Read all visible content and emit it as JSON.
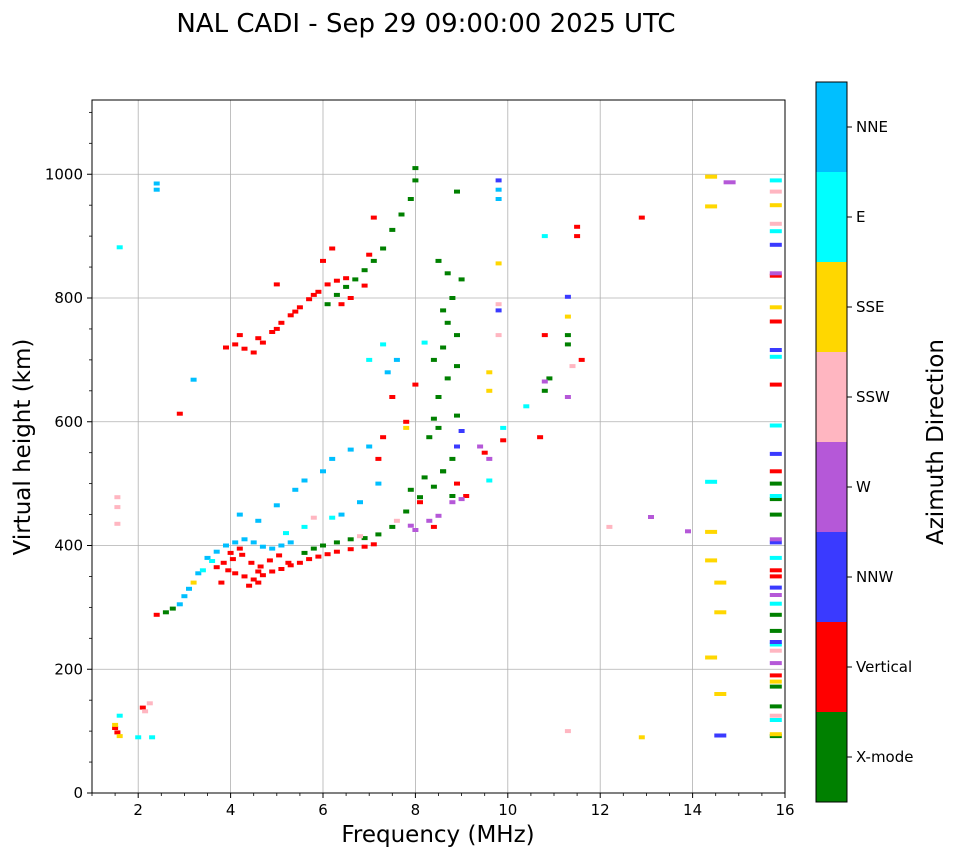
{
  "chart_data": {
    "type": "scatter",
    "title": "NAL CADI - Sep 29 09:00:00 2025 UTC",
    "xlabel": "Frequency (MHz)",
    "ylabel": "Virtual height (km)",
    "xlim": [
      1,
      16
    ],
    "ylim": [
      0,
      1120
    ],
    "xticks": [
      2,
      4,
      6,
      8,
      10,
      12,
      14,
      16
    ],
    "yticks": [
      0,
      200,
      400,
      600,
      800,
      1000
    ],
    "grid": true,
    "colorbar": {
      "label": "Azimuth Direction",
      "placement": "right",
      "categories": [
        {
          "name": "X-mode",
          "color": "#008000"
        },
        {
          "name": "Vertical",
          "color": "#ff0000"
        },
        {
          "name": "NNW",
          "color": "#3a3aff"
        },
        {
          "name": "W",
          "color": "#b558d8"
        },
        {
          "name": "SSW",
          "color": "#ffb6c1"
        },
        {
          "name": "SSE",
          "color": "#ffd700"
        },
        {
          "name": "E",
          "color": "#00ffff"
        },
        {
          "name": "NNE",
          "color": "#00bfff"
        }
      ]
    },
    "series": [
      {
        "name": "Vertical",
        "points": [
          [
            3.95,
            360
          ],
          [
            4.1,
            355
          ],
          [
            4.3,
            350
          ],
          [
            4.5,
            345
          ],
          [
            4.7,
            352
          ],
          [
            4.9,
            358
          ],
          [
            5.1,
            362
          ],
          [
            5.3,
            368
          ],
          [
            5.5,
            372
          ],
          [
            5.7,
            378
          ],
          [
            5.9,
            382
          ],
          [
            6.1,
            386
          ],
          [
            6.3,
            390
          ],
          [
            6.6,
            394
          ],
          [
            6.9,
            398
          ],
          [
            7.1,
            402
          ],
          [
            3.7,
            365
          ],
          [
            3.85,
            372
          ],
          [
            4.05,
            378
          ],
          [
            4.25,
            385
          ],
          [
            4.45,
            372
          ],
          [
            4.65,
            366
          ],
          [
            4.85,
            376
          ],
          [
            5.05,
            384
          ],
          [
            5.25,
            372
          ],
          [
            4.6,
            340
          ],
          [
            4.4,
            335
          ],
          [
            3.8,
            340
          ],
          [
            4.0,
            388
          ],
          [
            4.2,
            395
          ],
          [
            4.6,
            358
          ],
          [
            3.9,
            720
          ],
          [
            4.1,
            725
          ],
          [
            4.3,
            718
          ],
          [
            4.5,
            712
          ],
          [
            4.7,
            728
          ],
          [
            4.9,
            745
          ],
          [
            5.1,
            760
          ],
          [
            5.3,
            772
          ],
          [
            5.5,
            785
          ],
          [
            5.7,
            798
          ],
          [
            5.9,
            810
          ],
          [
            6.1,
            822
          ],
          [
            6.3,
            828
          ],
          [
            6.5,
            832
          ],
          [
            4.6,
            735
          ],
          [
            5.0,
            750
          ],
          [
            5.4,
            778
          ],
          [
            5.8,
            805
          ],
          [
            4.2,
            740
          ],
          [
            7.2,
            540
          ],
          [
            7.3,
            575
          ],
          [
            7.5,
            640
          ],
          [
            7.8,
            600
          ],
          [
            8.0,
            660
          ],
          [
            8.1,
            470
          ],
          [
            8.4,
            430
          ],
          [
            8.9,
            500
          ],
          [
            9.1,
            480
          ],
          [
            9.5,
            550
          ],
          [
            9.9,
            570
          ],
          [
            10.7,
            575
          ],
          [
            10.8,
            740
          ],
          [
            11.6,
            700
          ],
          [
            11.5,
            900
          ],
          [
            11.5,
            915
          ],
          [
            12.9,
            930
          ],
          [
            15.8,
            660
          ],
          [
            15.8,
            520
          ],
          [
            15.8,
            360
          ],
          [
            15.8,
            350
          ],
          [
            15.8,
            190
          ],
          [
            15.8,
            836
          ],
          [
            15.8,
            762
          ],
          [
            1.5,
            105
          ],
          [
            1.55,
            98
          ],
          [
            2.1,
            138
          ],
          [
            2.4,
            288
          ],
          [
            2.9,
            613
          ],
          [
            6.4,
            790
          ],
          [
            6.6,
            800
          ],
          [
            6.9,
            820
          ],
          [
            7.0,
            870
          ],
          [
            7.1,
            930
          ],
          [
            5.0,
            822
          ],
          [
            6.0,
            860
          ],
          [
            6.2,
            880
          ]
        ]
      },
      {
        "name": "X-mode",
        "points": [
          [
            6.0,
            400
          ],
          [
            6.3,
            405
          ],
          [
            6.6,
            410
          ],
          [
            6.9,
            412
          ],
          [
            7.2,
            418
          ],
          [
            7.5,
            430
          ],
          [
            7.8,
            455
          ],
          [
            8.1,
            478
          ],
          [
            8.4,
            495
          ],
          [
            8.6,
            520
          ],
          [
            8.8,
            540
          ],
          [
            5.8,
            395
          ],
          [
            5.6,
            388
          ],
          [
            6.1,
            790
          ],
          [
            6.3,
            805
          ],
          [
            6.5,
            818
          ],
          [
            6.7,
            830
          ],
          [
            6.9,
            845
          ],
          [
            7.1,
            860
          ],
          [
            7.3,
            880
          ],
          [
            7.5,
            910
          ],
          [
            7.7,
            935
          ],
          [
            7.9,
            960
          ],
          [
            8.0,
            990
          ],
          [
            8.0,
            1010
          ],
          [
            8.5,
            860
          ],
          [
            8.7,
            840
          ],
          [
            8.8,
            800
          ],
          [
            8.6,
            780
          ],
          [
            8.7,
            760
          ],
          [
            8.9,
            740
          ],
          [
            8.6,
            720
          ],
          [
            8.4,
            700
          ],
          [
            8.9,
            690
          ],
          [
            8.7,
            670
          ],
          [
            8.5,
            640
          ],
          [
            8.4,
            605
          ],
          [
            8.5,
            590
          ],
          [
            8.9,
            610
          ],
          [
            8.3,
            575
          ],
          [
            8.6,
            520
          ],
          [
            8.8,
            480
          ],
          [
            8.2,
            510
          ],
          [
            7.9,
            490
          ],
          [
            8.9,
            972
          ],
          [
            9.0,
            830
          ],
          [
            2.6,
            292
          ],
          [
            2.75,
            298
          ],
          [
            11.3,
            740
          ],
          [
            11.3,
            725
          ],
          [
            10.9,
            670
          ],
          [
            10.8,
            650
          ],
          [
            15.8,
            500
          ],
          [
            15.8,
            475
          ],
          [
            15.8,
            450
          ],
          [
            15.8,
            262
          ],
          [
            15.8,
            172
          ],
          [
            15.8,
            140
          ],
          [
            15.8,
            92
          ],
          [
            15.8,
            288
          ]
        ]
      },
      {
        "name": "NNE",
        "points": [
          [
            3.5,
            380
          ],
          [
            3.7,
            390
          ],
          [
            3.9,
            400
          ],
          [
            4.1,
            405
          ],
          [
            4.3,
            410
          ],
          [
            4.5,
            405
          ],
          [
            4.7,
            398
          ],
          [
            4.9,
            395
          ],
          [
            5.1,
            400
          ],
          [
            5.3,
            405
          ],
          [
            3.3,
            355
          ],
          [
            3.1,
            330
          ],
          [
            3.0,
            318
          ],
          [
            2.9,
            305
          ],
          [
            4.2,
            450
          ],
          [
            4.6,
            440
          ],
          [
            5.0,
            465
          ],
          [
            5.4,
            490
          ],
          [
            5.6,
            505
          ],
          [
            6.0,
            520
          ],
          [
            6.2,
            540
          ],
          [
            6.6,
            555
          ],
          [
            7.0,
            560
          ],
          [
            7.2,
            500
          ],
          [
            6.8,
            470
          ],
          [
            6.4,
            450
          ],
          [
            2.4,
            985
          ],
          [
            2.4,
            975
          ],
          [
            9.8,
            975
          ],
          [
            9.8,
            960
          ],
          [
            7.4,
            680
          ],
          [
            7.6,
            700
          ],
          [
            3.2,
            668
          ]
        ]
      },
      {
        "name": "E",
        "points": [
          [
            3.4,
            360
          ],
          [
            3.6,
            375
          ],
          [
            5.2,
            420
          ],
          [
            5.6,
            430
          ],
          [
            6.2,
            445
          ],
          [
            7.0,
            700
          ],
          [
            7.3,
            725
          ],
          [
            8.2,
            728
          ],
          [
            9.9,
            590
          ],
          [
            10.4,
            625
          ],
          [
            10.8,
            900
          ],
          [
            9.6,
            505
          ],
          [
            15.8,
            594
          ],
          [
            15.8,
            480
          ],
          [
            15.8,
            380
          ],
          [
            15.8,
            306
          ],
          [
            15.8,
            240
          ],
          [
            15.8,
            118
          ],
          [
            15.8,
            908
          ],
          [
            15.8,
            990
          ],
          [
            15.8,
            705
          ],
          [
            14.4,
            503
          ],
          [
            1.6,
            882
          ],
          [
            2.3,
            90
          ],
          [
            2.0,
            90
          ],
          [
            1.6,
            125
          ]
        ]
      },
      {
        "name": "NNW",
        "points": [
          [
            9.8,
            990
          ],
          [
            11.3,
            802
          ],
          [
            9.8,
            780
          ],
          [
            9.0,
            585
          ],
          [
            8.9,
            560
          ],
          [
            15.8,
            405
          ],
          [
            15.8,
            548
          ],
          [
            15.8,
            332
          ],
          [
            15.8,
            244
          ],
          [
            15.8,
            886
          ],
          [
            15.8,
            716
          ],
          [
            14.6,
            93
          ]
        ]
      },
      {
        "name": "W",
        "points": [
          [
            8.8,
            470
          ],
          [
            9.0,
            475
          ],
          [
            8.5,
            448
          ],
          [
            8.3,
            440
          ],
          [
            8.0,
            425
          ],
          [
            7.9,
            432
          ],
          [
            9.6,
            540
          ],
          [
            9.4,
            560
          ],
          [
            10.8,
            665
          ],
          [
            11.3,
            640
          ],
          [
            13.1,
            446
          ],
          [
            13.9,
            423
          ],
          [
            14.8,
            987
          ],
          [
            15.8,
            410
          ],
          [
            15.8,
            320
          ],
          [
            15.8,
            210
          ],
          [
            15.8,
            840
          ]
        ]
      },
      {
        "name": "SSW",
        "points": [
          [
            1.55,
            478
          ],
          [
            1.55,
            462
          ],
          [
            1.55,
            435
          ],
          [
            2.25,
            145
          ],
          [
            2.15,
            132
          ],
          [
            9.8,
            790
          ],
          [
            9.8,
            740
          ],
          [
            11.4,
            690
          ],
          [
            11.3,
            100
          ],
          [
            12.2,
            430
          ],
          [
            15.8,
            972
          ],
          [
            15.8,
            920
          ],
          [
            15.8,
            230
          ],
          [
            15.8,
            125
          ],
          [
            6.8,
            415
          ],
          [
            7.6,
            440
          ],
          [
            5.8,
            445
          ]
        ]
      },
      {
        "name": "SSE",
        "points": [
          [
            14.4,
            996
          ],
          [
            14.4,
            948
          ],
          [
            14.4,
            422
          ],
          [
            14.4,
            376
          ],
          [
            14.6,
            340
          ],
          [
            14.6,
            292
          ],
          [
            14.4,
            219
          ],
          [
            14.6,
            160
          ],
          [
            12.9,
            90
          ],
          [
            9.6,
            650
          ],
          [
            9.6,
            680
          ],
          [
            9.8,
            856
          ],
          [
            11.3,
            770
          ],
          [
            15.8,
            950
          ],
          [
            15.8,
            785
          ],
          [
            15.8,
            180
          ],
          [
            15.8,
            95
          ],
          [
            1.5,
            110
          ],
          [
            1.6,
            92
          ],
          [
            3.2,
            340
          ],
          [
            7.8,
            590
          ]
        ]
      }
    ]
  }
}
